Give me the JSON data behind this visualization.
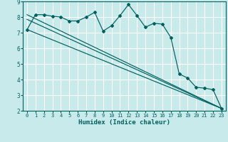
{
  "xlabel": "Humidex (Indice chaleur)",
  "bg_color": "#c8eaea",
  "grid_color": "#ffffff",
  "line_color": "#006060",
  "xlim": [
    -0.5,
    23.5
  ],
  "ylim": [
    2,
    9
  ],
  "xticks": [
    0,
    1,
    2,
    3,
    4,
    5,
    6,
    7,
    8,
    9,
    10,
    11,
    12,
    13,
    14,
    15,
    16,
    17,
    18,
    19,
    20,
    21,
    22,
    23
  ],
  "yticks": [
    2,
    3,
    4,
    5,
    6,
    7,
    8,
    9
  ],
  "series1_x": [
    0,
    1,
    2,
    3,
    4,
    5,
    6,
    7,
    8,
    9,
    10,
    11,
    12,
    13,
    14,
    15,
    16,
    17,
    18,
    19,
    20,
    21,
    22,
    23
  ],
  "series1_y": [
    7.2,
    8.15,
    8.15,
    8.05,
    8.0,
    7.75,
    7.75,
    8.0,
    8.3,
    7.1,
    7.45,
    8.1,
    8.8,
    8.1,
    7.35,
    7.6,
    7.55,
    6.7,
    4.35,
    4.1,
    3.5,
    3.45,
    3.35,
    2.15
  ],
  "line1_x": [
    0,
    23
  ],
  "line1_y": [
    7.2,
    2.15
  ],
  "line2_x": [
    0,
    23
  ],
  "line2_y": [
    7.85,
    2.15
  ],
  "line3_x": [
    0,
    23
  ],
  "line3_y": [
    8.15,
    2.15
  ]
}
